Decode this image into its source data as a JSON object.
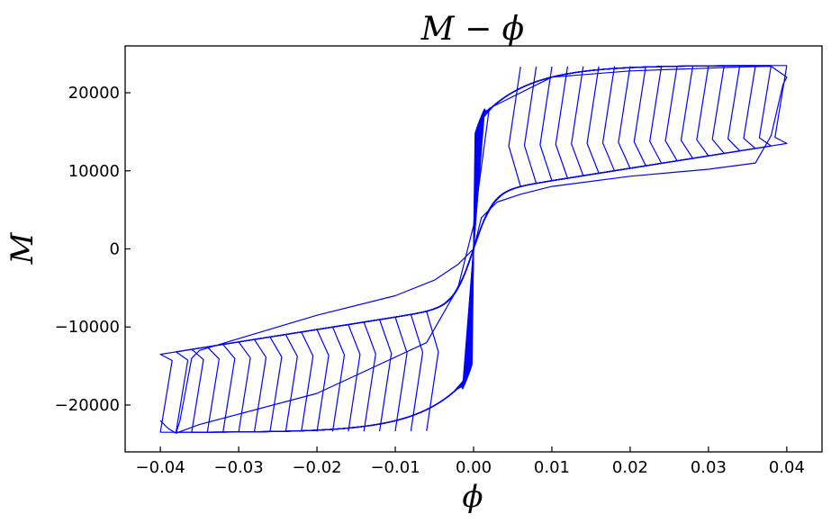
{
  "chart_data": {
    "type": "line",
    "title": "M − ϕ",
    "xlabel": "ϕ",
    "ylabel": "M",
    "xlim": [
      -0.0445,
      0.0445
    ],
    "ylim": [
      -26000,
      26000
    ],
    "xticks": [
      -0.04,
      -0.03,
      -0.02,
      -0.01,
      0.0,
      0.01,
      0.02,
      0.03,
      0.04
    ],
    "xtick_labels": [
      "−0.04",
      "−0.03",
      "−0.02",
      "−0.01",
      "0.00",
      "0.01",
      "0.02",
      "0.03",
      "0.04"
    ],
    "yticks": [
      -20000,
      -10000,
      0,
      10000,
      20000
    ],
    "ytick_labels": [
      "−20000",
      "−10000",
      "0",
      "10000",
      "20000"
    ],
    "grid": false,
    "series_color": "#0000ff",
    "description": "Hysteretic moment–curvature loops with increasing curvature amplitude",
    "loop_amplitudes": [
      0.006,
      0.008,
      0.01,
      0.012,
      0.014,
      0.016,
      0.018,
      0.02,
      0.022,
      0.024,
      0.026,
      0.028,
      0.03,
      0.032,
      0.034,
      0.036,
      0.038,
      0.04
    ],
    "peak_moment": 23500,
    "yield_moment": 13000,
    "series": [
      {
        "name": "",
        "x": [
          -0.04,
          -0.039,
          -0.038,
          -0.0375,
          -0.036,
          -0.035,
          -0.03,
          -0.02,
          -0.01,
          -0.005,
          -0.002,
          0.0,
          0.001,
          0.003,
          0.006,
          0.01,
          0.02,
          0.03,
          0.036,
          0.038,
          0.0395,
          0.04,
          0.038,
          0.034,
          0.02,
          0.01,
          0.002,
          0.0,
          -0.002,
          -0.006,
          -0.02,
          -0.035,
          -0.038
        ],
        "y": [
          -22000,
          -23000,
          -23600,
          -22000,
          -14000,
          -13000,
          -11500,
          -8500,
          -6000,
          -4000,
          -2000,
          0,
          4000,
          6000,
          7000,
          8000,
          9300,
          10200,
          11000,
          14500,
          21000,
          22000,
          23400,
          23300,
          22800,
          22000,
          18000,
          3000,
          -5000,
          -12000,
          -18500,
          -22500,
          -23600
        ]
      }
    ]
  }
}
